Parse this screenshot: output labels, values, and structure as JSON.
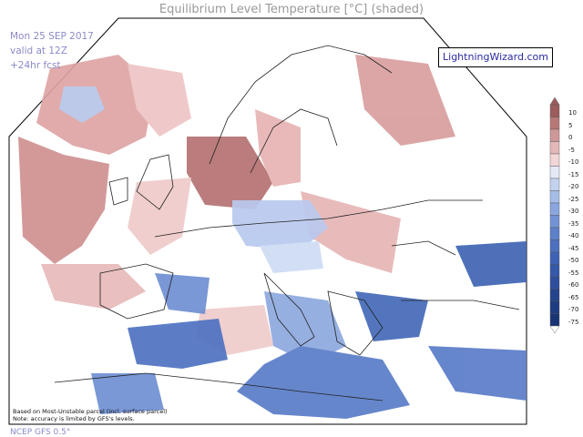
{
  "map": {
    "title": "Equilibrium Level Temperature [°C] (shaded)",
    "info": {
      "date": "Mon 25 SEP 2017",
      "valid": "valid at 12Z",
      "forecast": "+24hr fcst"
    },
    "brand": "LightningWizard.com",
    "notes": [
      "Based on Most-Unstable parcel (incl. surface parcel)",
      "Note: accuracy is limited by GFS's levels."
    ],
    "model": "NCEP GFS 0.5°",
    "colorbar": {
      "labels": [
        "10",
        "5",
        "0",
        "-5",
        "-10",
        "-15",
        "-20",
        "-25",
        "-30",
        "-35",
        "-40",
        "-45",
        "-50",
        "-55",
        "-60",
        "-65",
        "-70",
        "-75"
      ],
      "colors": [
        "#9c5c5c",
        "#b87878",
        "#cf9898",
        "#e3b8b8",
        "#f2d6d6",
        "#e4e9f8",
        "#c4d2f0",
        "#a6bce8",
        "#8aa6de",
        "#7292d4",
        "#5c80ca",
        "#4c70c0",
        "#3e62b6",
        "#3458aa",
        "#2c4e9c",
        "#24448e",
        "#1e3c82",
        "#183474"
      ]
    }
  }
}
